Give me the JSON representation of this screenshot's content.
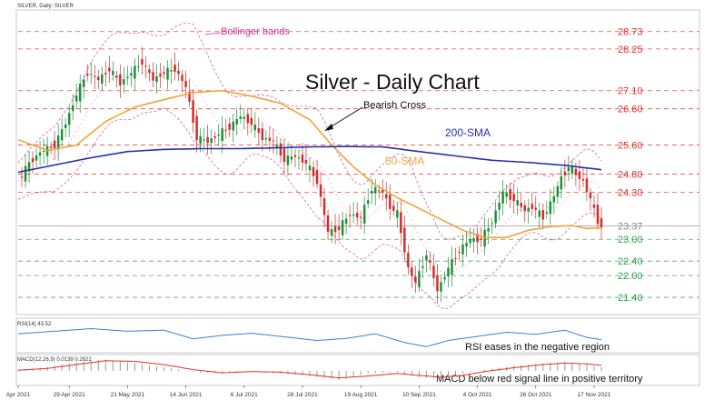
{
  "header": {
    "symbol_line": "SILVER, Daily:  SILVER"
  },
  "chart_data": [
    {
      "type": "candlestick",
      "title": "Silver - Daily Chart",
      "ylim": [
        20.95,
        29.3
      ],
      "levels": [
        {
          "value": 28.73,
          "label": "28.73",
          "color": "#e0312c"
        },
        {
          "value": 28.25,
          "label": "28.25",
          "color": "#e0312c"
        },
        {
          "value": 27.1,
          "label": "27.10",
          "color": "#e0312c"
        },
        {
          "value": 26.6,
          "label": "26.60",
          "color": "#e0312c"
        },
        {
          "value": 25.6,
          "label": "25.60",
          "color": "#e0312c"
        },
        {
          "value": 24.8,
          "label": "24.80",
          "color": "#e0312c"
        },
        {
          "value": 24.3,
          "label": "24.30",
          "color": "#e0312c"
        },
        {
          "value": 23.37,
          "label": "23.37",
          "color": "#888888"
        },
        {
          "value": 23.0,
          "label": "23.00",
          "color": "#2e9e4a"
        },
        {
          "value": 22.4,
          "label": "22.40",
          "color": "#2e9e4a"
        },
        {
          "value": 22.0,
          "label": "22.00",
          "color": "#2e9e4a"
        },
        {
          "value": 21.4,
          "label": "21.40",
          "color": "#2e9e4a"
        }
      ],
      "x_tick_labels": [
        "Apr 2021",
        "29 Apr 2021",
        "21 May 2021",
        "14 Jun 2021",
        "6 Jul 2021",
        "28 Jul 2021",
        "19 Aug 2021",
        "10 Sep 2021",
        "4 Oct 2021",
        "26 Oct 2021",
        "17 Nov 2021"
      ],
      "x_tick_index": [
        0,
        14,
        30,
        46,
        62,
        78,
        94,
        110,
        126,
        142,
        158
      ],
      "annotations": {
        "bollinger": {
          "text": "Bollinger bands",
          "color": "#cc2f9a"
        },
        "bearish_cross": {
          "text": "Bearish Cross",
          "color": "#111111"
        },
        "sma200": {
          "text": "200-SMA",
          "color": "#2a2fa8"
        },
        "sma50": {
          "text": "50-SMA",
          "color": "#f2a33a"
        }
      },
      "close_path": [
        [
          0,
          24.6
        ],
        [
          3,
          25.1
        ],
        [
          6,
          25.4
        ],
        [
          10,
          25.6
        ],
        [
          13,
          26.2
        ],
        [
          16,
          27.0
        ],
        [
          19,
          27.6
        ],
        [
          22,
          27.4
        ],
        [
          25,
          27.7
        ],
        [
          28,
          27.3
        ],
        [
          31,
          27.6
        ],
        [
          34,
          27.9
        ],
        [
          37,
          27.4
        ],
        [
          40,
          27.6
        ],
        [
          43,
          27.7
        ],
        [
          46,
          27.2
        ],
        [
          49,
          25.8
        ],
        [
          52,
          25.7
        ],
        [
          55,
          25.9
        ],
        [
          58,
          26.1
        ],
        [
          61,
          26.4
        ],
        [
          64,
          26.2
        ],
        [
          67,
          25.8
        ],
        [
          70,
          25.7
        ],
        [
          73,
          25.2
        ],
        [
          76,
          25.3
        ],
        [
          79,
          25.1
        ],
        [
          82,
          24.6
        ],
        [
          85,
          23.2
        ],
        [
          88,
          23.3
        ],
        [
          91,
          23.7
        ],
        [
          94,
          23.6
        ],
        [
          97,
          24.4
        ],
        [
          100,
          24.3
        ],
        [
          102,
          23.9
        ],
        [
          104,
          23.7
        ],
        [
          107,
          22.2
        ],
        [
          109,
          21.8
        ],
        [
          112,
          22.6
        ],
        [
          115,
          21.6
        ],
        [
          118,
          22.2
        ],
        [
          121,
          22.7
        ],
        [
          124,
          23.0
        ],
        [
          127,
          23.0
        ],
        [
          130,
          23.5
        ],
        [
          133,
          24.3
        ],
        [
          136,
          24.1
        ],
        [
          139,
          23.8
        ],
        [
          141,
          23.9
        ],
        [
          144,
          23.6
        ],
        [
          147,
          24.2
        ],
        [
          149,
          24.7
        ],
        [
          151,
          25.0
        ],
        [
          153,
          24.8
        ],
        [
          155,
          24.6
        ],
        [
          157,
          24.1
        ],
        [
          159,
          23.5
        ],
        [
          160,
          23.37
        ]
      ],
      "sma200_path": [
        [
          0,
          24.85
        ],
        [
          10,
          25.05
        ],
        [
          20,
          25.25
        ],
        [
          30,
          25.42
        ],
        [
          40,
          25.48
        ],
        [
          50,
          25.5
        ],
        [
          60,
          25.5
        ],
        [
          70,
          25.52
        ],
        [
          80,
          25.55
        ],
        [
          90,
          25.56
        ],
        [
          100,
          25.55
        ],
        [
          110,
          25.42
        ],
        [
          120,
          25.3
        ],
        [
          130,
          25.18
        ],
        [
          140,
          25.12
        ],
        [
          150,
          25.04
        ],
        [
          160,
          24.92
        ]
      ],
      "sma50_path": [
        [
          0,
          25.75
        ],
        [
          8,
          25.45
        ],
        [
          16,
          25.6
        ],
        [
          24,
          26.25
        ],
        [
          32,
          26.65
        ],
        [
          40,
          26.85
        ],
        [
          48,
          27.05
        ],
        [
          56,
          27.1
        ],
        [
          64,
          26.95
        ],
        [
          72,
          26.75
        ],
        [
          80,
          26.3
        ],
        [
          86,
          25.6
        ],
        [
          92,
          25.0
        ],
        [
          98,
          24.5
        ],
        [
          104,
          24.15
        ],
        [
          110,
          23.85
        ],
        [
          116,
          23.55
        ],
        [
          122,
          23.25
        ],
        [
          128,
          23.05
        ],
        [
          134,
          23.05
        ],
        [
          140,
          23.25
        ],
        [
          146,
          23.35
        ],
        [
          152,
          23.38
        ],
        [
          156,
          23.3
        ],
        [
          160,
          23.32
        ]
      ],
      "bb_width": [
        [
          0,
          0.5
        ],
        [
          10,
          0.9
        ],
        [
          20,
          1.2
        ],
        [
          30,
          1.2
        ],
        [
          40,
          1.0
        ],
        [
          48,
          1.6
        ],
        [
          56,
          1.2
        ],
        [
          64,
          0.8
        ],
        [
          72,
          0.9
        ],
        [
          82,
          1.5
        ],
        [
          92,
          1.0
        ],
        [
          100,
          1.1
        ],
        [
          108,
          1.5
        ],
        [
          116,
          1.0
        ],
        [
          124,
          0.8
        ],
        [
          132,
          1.0
        ],
        [
          140,
          0.8
        ],
        [
          148,
          0.9
        ],
        [
          156,
          0.9
        ],
        [
          160,
          0.8
        ]
      ]
    },
    {
      "type": "line",
      "indicator_label": "RSI(14) 43.52",
      "ylim": [
        20,
        80
      ],
      "annotation": "RSI eases in the negative region",
      "values": [
        [
          0,
          55
        ],
        [
          10,
          60
        ],
        [
          20,
          65
        ],
        [
          30,
          60
        ],
        [
          40,
          62
        ],
        [
          48,
          45
        ],
        [
          56,
          52
        ],
        [
          64,
          56
        ],
        [
          72,
          50
        ],
        [
          82,
          42
        ],
        [
          90,
          46
        ],
        [
          98,
          55
        ],
        [
          106,
          38
        ],
        [
          112,
          30
        ],
        [
          118,
          42
        ],
        [
          126,
          50
        ],
        [
          134,
          58
        ],
        [
          142,
          54
        ],
        [
          150,
          62
        ],
        [
          156,
          48
        ],
        [
          160,
          43.52
        ]
      ]
    },
    {
      "type": "bar",
      "indicator_label": "MACD(12,26,9) 0.0139 0.2621",
      "annotation": "MACD below red signal line in positive territory",
      "histogram": [
        [
          0,
          0.1
        ],
        [
          8,
          0.3
        ],
        [
          16,
          0.7
        ],
        [
          24,
          0.9
        ],
        [
          32,
          0.6
        ],
        [
          40,
          0.3
        ],
        [
          48,
          -0.1
        ],
        [
          56,
          -0.2
        ],
        [
          64,
          0.0
        ],
        [
          72,
          -0.2
        ],
        [
          80,
          -0.4
        ],
        [
          88,
          -0.7
        ],
        [
          96,
          -0.2
        ],
        [
          104,
          -0.1
        ],
        [
          110,
          -0.5
        ],
        [
          116,
          -0.6
        ],
        [
          122,
          -0.2
        ],
        [
          128,
          0.1
        ],
        [
          136,
          0.4
        ],
        [
          144,
          0.6
        ],
        [
          150,
          0.7
        ],
        [
          156,
          0.5
        ],
        [
          160,
          0.3
        ]
      ],
      "signal": [
        [
          0,
          0.05
        ],
        [
          8,
          0.2
        ],
        [
          16,
          0.5
        ],
        [
          24,
          0.8
        ],
        [
          32,
          0.75
        ],
        [
          40,
          0.5
        ],
        [
          48,
          0.1
        ],
        [
          56,
          -0.15
        ],
        [
          64,
          -0.05
        ],
        [
          72,
          -0.1
        ],
        [
          80,
          -0.3
        ],
        [
          88,
          -0.55
        ],
        [
          96,
          -0.4
        ],
        [
          104,
          -0.2
        ],
        [
          110,
          -0.35
        ],
        [
          116,
          -0.5
        ],
        [
          122,
          -0.35
        ],
        [
          128,
          -0.05
        ],
        [
          136,
          0.25
        ],
        [
          144,
          0.5
        ],
        [
          150,
          0.62
        ],
        [
          156,
          0.55
        ],
        [
          160,
          0.45
        ]
      ]
    }
  ]
}
